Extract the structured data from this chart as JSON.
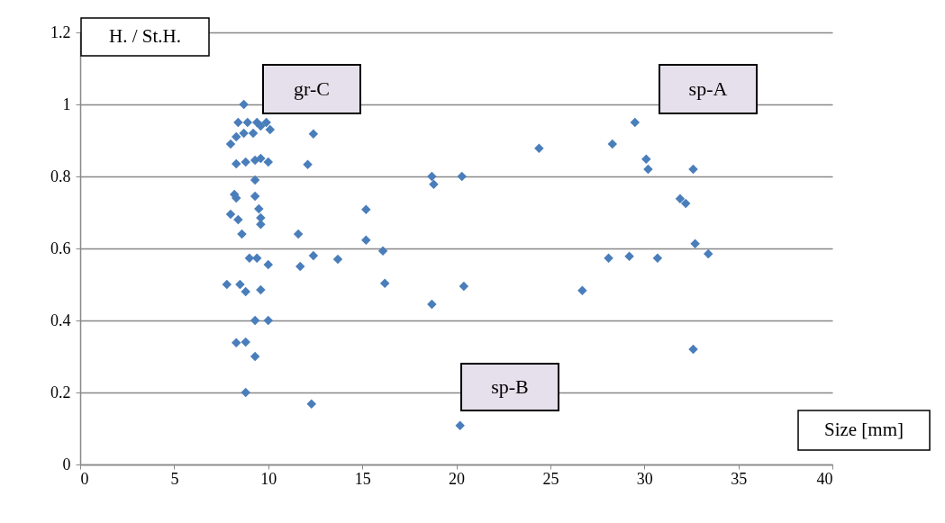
{
  "chart_data": {
    "type": "scatter",
    "xlabel": "Size [mm]",
    "ylabel": "H. / St.H.",
    "series": [
      {
        "color": "#4a7ebb",
        "x": [
          8.7,
          8.4,
          8.9,
          9.4,
          9.9,
          10.1,
          8.0,
          8.3,
          8.7,
          9.2,
          9.6,
          8.3,
          8.8,
          9.3,
          9.6,
          10.0,
          9.3,
          8.2,
          8.3,
          9.3,
          9.5,
          8.0,
          8.4,
          8.6,
          9.6,
          9.6,
          7.8,
          8.5,
          8.8,
          9.6,
          9.0,
          9.4,
          10.0,
          9.3,
          10.0,
          8.3,
          8.8,
          9.3,
          8.8,
          12.4,
          12.1,
          11.6,
          11.7,
          12.4,
          13.7,
          12.3,
          15.2,
          15.2,
          16.1,
          16.2,
          18.7,
          18.8,
          20.3,
          18.7,
          20.4,
          20.2,
          24.4,
          28.3,
          29.5,
          30.1,
          30.2,
          32.6,
          31.9,
          32.2,
          28.1,
          29.2,
          30.7,
          32.7,
          33.4,
          26.7,
          32.6
        ],
        "values": [
          1.0,
          0.95,
          0.95,
          0.95,
          0.95,
          0.93,
          0.89,
          0.91,
          0.92,
          0.92,
          0.94,
          0.835,
          0.84,
          0.845,
          0.85,
          0.84,
          0.79,
          0.75,
          0.74,
          0.745,
          0.71,
          0.695,
          0.68,
          0.64,
          0.685,
          0.667,
          0.5,
          0.5,
          0.48,
          0.485,
          0.573,
          0.573,
          0.555,
          0.4,
          0.4,
          0.338,
          0.34,
          0.3,
          0.2,
          0.918,
          0.833,
          0.64,
          0.55,
          0.58,
          0.57,
          0.168,
          0.708,
          0.623,
          0.593,
          0.503,
          0.8,
          0.778,
          0.8,
          0.445,
          0.495,
          0.108,
          0.878,
          0.89,
          0.95,
          0.848,
          0.82,
          0.82,
          0.738,
          0.725,
          0.573,
          0.578,
          0.573,
          0.613,
          0.585,
          0.483,
          0.32
        ]
      }
    ],
    "xlim": [
      0,
      40
    ],
    "ylim": [
      0,
      1.2
    ],
    "xticks": [
      0,
      5,
      10,
      15,
      20,
      25,
      30,
      35,
      40
    ],
    "yticks": [
      0,
      0.2,
      0.4,
      0.6,
      0.8,
      1,
      1.2
    ],
    "grid": "y",
    "marker": "diamond",
    "annotations": [
      "gr-C",
      "sp-B",
      "sp-A"
    ]
  }
}
